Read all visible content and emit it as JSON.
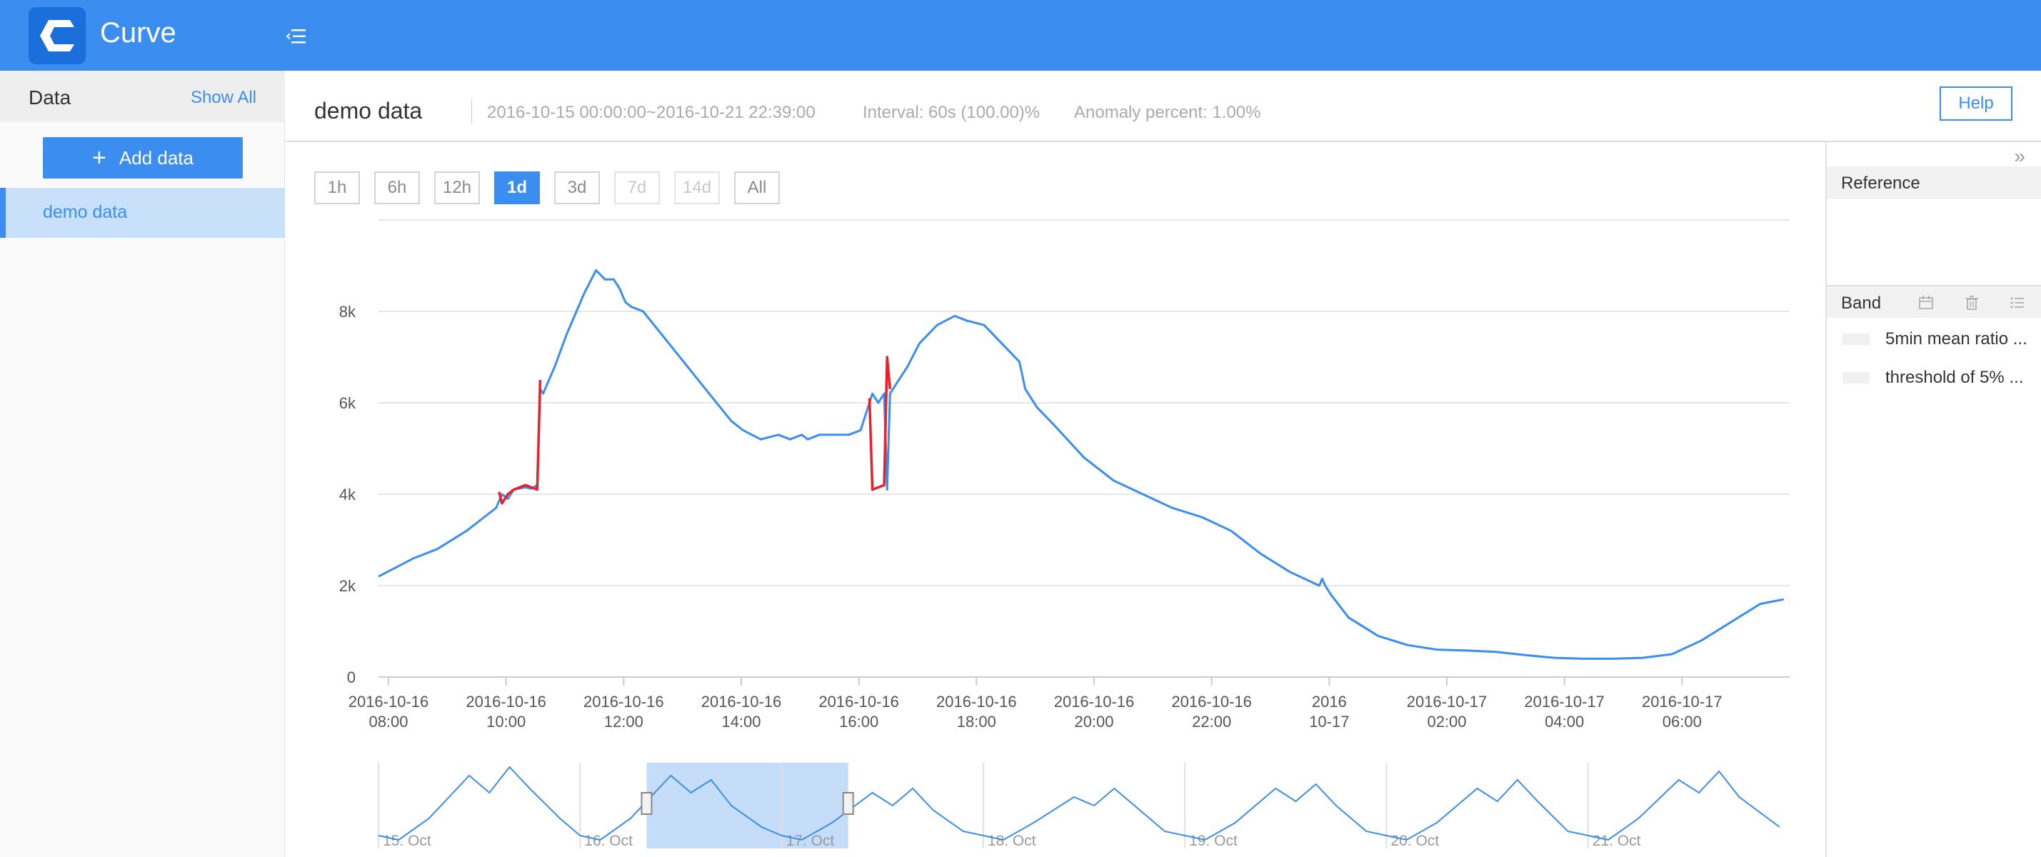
{
  "header": {
    "app_title": "Curve",
    "logo_icon": "curve-logo-icon",
    "menu_icon": "menu-toggle-icon",
    "bar_color": "#3b8ef0"
  },
  "sidebar": {
    "title": "Data",
    "show_all": "Show All",
    "add_button": "Add data",
    "items": [
      {
        "label": "demo data",
        "selected": true
      }
    ]
  },
  "main": {
    "title": "demo data",
    "time_range": "2016-10-15 00:00:00~2016-10-21 22:39:00",
    "interval": "Interval: 60s (100.00)%",
    "anomaly": "Anomaly percent: 1.00%",
    "help": "Help",
    "ranges": [
      {
        "label": "1h",
        "state": "normal"
      },
      {
        "label": "6h",
        "state": "normal"
      },
      {
        "label": "12h",
        "state": "normal"
      },
      {
        "label": "1d",
        "state": "active"
      },
      {
        "label": "3d",
        "state": "normal"
      },
      {
        "label": "7d",
        "state": "disabled"
      },
      {
        "label": "14d",
        "state": "disabled"
      },
      {
        "label": "All",
        "state": "normal"
      }
    ]
  },
  "right_panel": {
    "reference": "Reference",
    "band": "Band",
    "bands": [
      {
        "name": "5min mean ratio ..."
      },
      {
        "name": "threshold of 5% ..."
      }
    ]
  },
  "chart_data": [
    {
      "type": "line",
      "title": "",
      "xlabel": "",
      "ylabel": "",
      "x_unit": "hours since 2016-10-16 07:50",
      "xlim": [
        0,
        24
      ],
      "ylim": [
        0,
        10000
      ],
      "y_ticks": [
        "0",
        "2k",
        "4k",
        "6k",
        "8k"
      ],
      "y_tick_values": [
        0,
        2000,
        4000,
        6000,
        8000
      ],
      "x_ticks": [
        {
          "line1": "2016-10-16",
          "line2": "08:00",
          "x": 0.17
        },
        {
          "line1": "2016-10-16",
          "line2": "10:00",
          "x": 2.17
        },
        {
          "line1": "2016-10-16",
          "line2": "12:00",
          "x": 4.17
        },
        {
          "line1": "2016-10-16",
          "line2": "14:00",
          "x": 6.17
        },
        {
          "line1": "2016-10-16",
          "line2": "16:00",
          "x": 8.17
        },
        {
          "line1": "2016-10-16",
          "line2": "18:00",
          "x": 10.17
        },
        {
          "line1": "2016-10-16",
          "line2": "20:00",
          "x": 12.17
        },
        {
          "line1": "2016-10-16",
          "line2": "22:00",
          "x": 14.17
        },
        {
          "line1": "2016",
          "line2": "10-17",
          "x": 16.17
        },
        {
          "line1": "2016-10-17",
          "line2": "02:00",
          "x": 18.17
        },
        {
          "line1": "2016-10-17",
          "line2": "04:00",
          "x": 20.17
        },
        {
          "line1": "2016-10-17",
          "line2": "06:00",
          "x": 22.17
        }
      ],
      "grid": true,
      "series": [
        {
          "name": "value",
          "color": "#3b8ef0",
          "x": [
            0,
            0.3,
            0.6,
            1.0,
            1.5,
            1.8,
            2.0,
            2.1,
            2.2,
            2.3,
            2.5,
            2.6,
            2.7,
            2.75,
            2.8,
            3.0,
            3.2,
            3.5,
            3.7,
            3.85,
            4.0,
            4.1,
            4.2,
            4.3,
            4.5,
            5.0,
            5.5,
            6.0,
            6.2,
            6.5,
            6.8,
            7.0,
            7.2,
            7.3,
            7.5,
            7.8,
            8.0,
            8.2,
            8.4,
            8.5,
            8.6,
            8.65,
            8.7,
            8.8,
            9.0,
            9.2,
            9.5,
            9.8,
            10.0,
            10.3,
            10.6,
            10.9,
            11.0,
            11.1,
            11.2,
            11.5,
            12.0,
            12.5,
            13.0,
            13.5,
            14.0,
            14.5,
            15.0,
            15.5,
            16.0,
            16.05,
            16.1,
            16.2,
            16.5,
            17.0,
            17.5,
            18.0,
            18.5,
            19.0,
            19.5,
            20.0,
            20.5,
            21.0,
            21.5,
            22.0,
            22.5,
            23.0,
            23.5,
            23.9
          ],
          "y": [
            2200,
            2400,
            2600,
            2800,
            3200,
            3500,
            3700,
            4000,
            3900,
            4100,
            4150,
            4120,
            4200,
            6300,
            6200,
            6800,
            7500,
            8400,
            8900,
            8700,
            8700,
            8500,
            8200,
            8100,
            8000,
            7200,
            6400,
            5600,
            5400,
            5200,
            5300,
            5200,
            5300,
            5200,
            5300,
            5300,
            5300,
            5400,
            6200,
            6000,
            6200,
            4100,
            6200,
            6400,
            6800,
            7300,
            7700,
            7900,
            7800,
            7700,
            7300,
            6900,
            6300,
            6100,
            5900,
            5500,
            4800,
            4300,
            4000,
            3700,
            3500,
            3200,
            2700,
            2300,
            2000,
            2150,
            2000,
            1800,
            1300,
            900,
            700,
            600,
            580,
            550,
            480,
            420,
            400,
            400,
            420,
            500,
            800,
            1200,
            1600,
            1700
          ]
        },
        {
          "name": "anomaly segment 1",
          "color": "#e8212b",
          "x": [
            2.05,
            2.1,
            2.2,
            2.3,
            2.4,
            2.5,
            2.6,
            2.7,
            2.75
          ],
          "y": [
            4050,
            3800,
            4000,
            4100,
            4150,
            4200,
            4150,
            4100,
            6500
          ]
        },
        {
          "name": "anomaly segment 2",
          "color": "#e8212b",
          "x": [
            8.35,
            8.4,
            8.5,
            8.6,
            8.65,
            8.7
          ],
          "y": [
            6100,
            4100,
            4150,
            4200,
            7000,
            6300
          ]
        }
      ]
    },
    {
      "type": "area",
      "title": "",
      "x_unit": "days since 2016-10-15 00:00",
      "xlim": [
        0,
        7
      ],
      "x_ticks": [
        "15. Oct",
        "16. Oct",
        "17. Oct",
        "18. Oct",
        "19. Oct",
        "20. Oct",
        "21. Oct"
      ],
      "x_tick_values": [
        0,
        1,
        2,
        3,
        4,
        5,
        6
      ],
      "selected_range": [
        1.33,
        2.33
      ],
      "series": [
        {
          "name": "overview",
          "color": "#3b8ef0",
          "x": [
            0.0,
            0.1,
            0.25,
            0.45,
            0.55,
            0.65,
            0.75,
            0.9,
            1.0,
            1.1,
            1.25,
            1.45,
            1.55,
            1.65,
            1.75,
            1.9,
            2.0,
            2.1,
            2.25,
            2.45,
            2.55,
            2.65,
            2.75,
            2.9,
            3.0,
            3.1,
            3.25,
            3.45,
            3.55,
            3.65,
            3.75,
            3.9,
            4.0,
            4.1,
            4.25,
            4.45,
            4.55,
            4.65,
            4.75,
            4.9,
            5.0,
            5.1,
            5.25,
            5.45,
            5.55,
            5.65,
            5.75,
            5.9,
            6.0,
            6.1,
            6.25,
            6.45,
            6.55,
            6.65,
            6.75,
            6.95
          ],
          "y": [
            0.15,
            0.1,
            0.35,
            0.85,
            0.65,
            0.95,
            0.7,
            0.35,
            0.15,
            0.1,
            0.35,
            0.85,
            0.65,
            0.8,
            0.5,
            0.25,
            0.15,
            0.1,
            0.3,
            0.65,
            0.5,
            0.7,
            0.45,
            0.2,
            0.15,
            0.1,
            0.3,
            0.6,
            0.5,
            0.7,
            0.5,
            0.2,
            0.15,
            0.1,
            0.3,
            0.7,
            0.55,
            0.75,
            0.5,
            0.2,
            0.15,
            0.1,
            0.3,
            0.7,
            0.55,
            0.8,
            0.55,
            0.2,
            0.15,
            0.1,
            0.35,
            0.8,
            0.65,
            0.9,
            0.6,
            0.25
          ]
        }
      ]
    }
  ]
}
